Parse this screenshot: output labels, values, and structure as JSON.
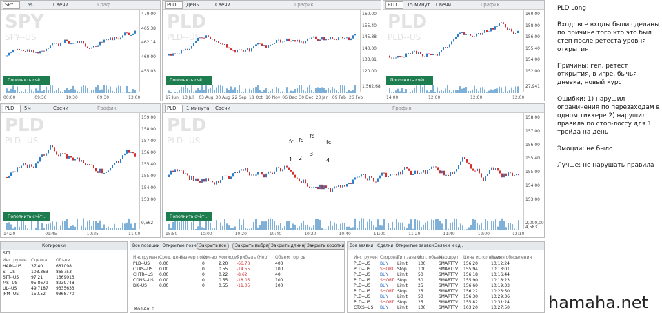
{
  "panes": [
    {
      "symbol": "SPY",
      "timeframe": "15s",
      "style": "Свечи",
      "title": "Граф",
      "watermark": "SPY",
      "watermark_sub": "SPY--US",
      "prices": [
        "470.00",
        "465.38",
        "462.14",
        "460.00",
        "455.03"
      ],
      "times": [
        "00:00",
        "09:30",
        "10:30",
        "09:30",
        "13:00"
      ],
      "button": "Пополнить счёт..."
    },
    {
      "symbol": "PLD",
      "timeframe": "День",
      "style": "Свечи",
      "title": "График",
      "watermark": "PLD",
      "watermark_sub": "PLD--US",
      "prices": [
        "160.00",
        "155.40",
        "145.88",
        "140.00",
        "133.81",
        "120.00"
      ],
      "volume": "1,562,689",
      "times": [
        "17 Jun",
        "13 Jul",
        "03 Aug",
        "30 Aug",
        "22 Sep",
        "18 Oct",
        "10 Nov",
        "06 Dec",
        "30 Dec",
        "23 Jan",
        "09 Feb",
        "26 Feb"
      ],
      "button": "Пополнить счёт..."
    },
    {
      "symbol": "PLD",
      "timeframe": "15 минут",
      "style": "Свечи",
      "title": "График",
      "watermark": "PLD",
      "watermark_sub": "PLD--US",
      "prices": [
        "160.00",
        "158.00",
        "156.00",
        "155.40",
        "154.00",
        "152.00"
      ],
      "volume": "27,941",
      "times": [
        "14:00",
        "12:00",
        "12:00",
        "12:00"
      ],
      "button": "Пополнить счёт..."
    },
    {
      "symbol": "PLD",
      "timeframe": "5м",
      "style": "Свечи",
      "title": "График",
      "watermark": "PLD",
      "watermark_sub": "PLD--US",
      "prices": [
        "159.00",
        "158.00",
        "157.00",
        "156.00",
        "155.40",
        "155.00",
        "154.00",
        "153.00"
      ],
      "volume": "9,662",
      "times": [
        "14:20",
        "09:45",
        "10:25",
        "11:00"
      ],
      "button": "Пополнить счёт..."
    },
    {
      "symbol": "PLD",
      "timeframe": "1 минута",
      "style": "Свечи",
      "title": "График",
      "watermark": "PLD",
      "watermark_sub": "PLD--US",
      "prices": [
        "158.00",
        "157.00",
        "156.00",
        "155.40",
        "155.00",
        "154.00",
        "153.00"
      ],
      "volume": "2,000,000",
      "volume2": "4,583",
      "times": [
        "15:50",
        "10:00",
        "10:20",
        "10:40",
        "10:20",
        "10:40",
        "11:00",
        "11:20",
        "11:40",
        "12:00",
        "12:10"
      ],
      "button": "Пополнить счёт...",
      "annotations": [
        "fc",
        "fc",
        "fc",
        "fc",
        "1",
        "2",
        "3",
        "4"
      ]
    }
  ],
  "watchlist": {
    "title": "Котировки",
    "symbol": "STT",
    "columns": [
      "Инструмент",
      "Сделка",
      "Объем"
    ],
    "rows": [
      [
        "HAIN--US",
        "37.40",
        "681098"
      ],
      [
        "SI--US",
        "108.363",
        "865753"
      ],
      [
        "STT--US",
        "97.21",
        "1369013"
      ],
      [
        "MS--US",
        "95.8679",
        "8939748"
      ],
      [
        "UL--US",
        "49.7187",
        "9335633"
      ],
      [
        "JPM--US",
        "150.52",
        "9368770"
      ]
    ]
  },
  "positions": {
    "tabs": [
      "Все позиции",
      "Открытые позиции"
    ],
    "buttons": [
      "Закрыть все",
      "Закрыть выбранное",
      "Закрыть длинные",
      "Закрыть короткие"
    ],
    "columns": [
      "Инструмент",
      "Сред. цена",
      "Размер пози",
      "Кол-во",
      "Комиссия",
      "Прибыль (Нер)",
      "Объем торгов"
    ],
    "rows": [
      [
        "PLD--US",
        "0.00",
        "",
        "0",
        "2.20",
        "-66.70",
        "400"
      ],
      [
        "CTXS--US",
        "0.00",
        "",
        "0",
        "0.55",
        "-14.55",
        "100"
      ],
      [
        "CHTR--US",
        "0.00",
        "",
        "0",
        "0.22",
        "-8.62",
        "40"
      ],
      [
        "CDNS--US",
        "0.00",
        "",
        "0",
        "0.55",
        "-18.05",
        "100"
      ],
      [
        "BK--US",
        "0.00",
        "",
        "0",
        "0.55",
        "-11.05",
        "100"
      ]
    ],
    "footer": "Кол-во: 0"
  },
  "orders": {
    "tabs": [
      "Все заявки",
      "Сделки",
      "Открытые заявки",
      "Заявки и сд.."
    ],
    "columns": [
      "Инструмент",
      "Сторона",
      "Тип заявки",
      "Исп. объем",
      "Маршрут",
      "Цена исполнения",
      "Время обновления"
    ],
    "rows": [
      [
        "PLD--US",
        "BUY",
        "Limit",
        "100",
        "SMARTTV",
        "156.20",
        "10:12:24"
      ],
      [
        "PLD--US",
        "SHORT",
        "Stop",
        "100",
        "SMARTTV",
        "155.94",
        "10:13:01"
      ],
      [
        "PLD--US",
        "BUY",
        "Limit",
        "50",
        "SMARTTV",
        "156.18",
        "10:16:44"
      ],
      [
        "PLD--US",
        "SHORT",
        "Stop",
        "50",
        "SMARTTV",
        "155.90",
        "10:18:23"
      ],
      [
        "PLD--US",
        "BUY",
        "Limit",
        "25",
        "SMARTTV",
        "156.60",
        "10:19:33"
      ],
      [
        "PLD--US",
        "SHORT",
        "Stop",
        "25",
        "SMARTTV",
        "156.22",
        "10:23:50"
      ],
      [
        "PLD--US",
        "BUY",
        "Limit",
        "50",
        "SMARTTV",
        "156.30",
        "10:29:36"
      ],
      [
        "PLD--US",
        "SHORT",
        "Stop",
        "25",
        "SMARTTV",
        "155.82",
        "10:31:24"
      ],
      [
        "CTXS--US",
        "BUY",
        "Limit",
        "100",
        "SMARTTV",
        "103.20",
        "10:27:50"
      ]
    ]
  },
  "notes": {
    "title": "PLD Long",
    "paragraphs": [
      "Вход: все входы были сделаны по причине того что это был степ после ретеста уровня открытия",
      "Причины: геп, ретест открытия, в игре, бычья дневка, новый курс",
      "Ошибки: 1) нарушил ограничения по перезаходам в одном тиккере 2) нарушил правила по стоп-лоссу для 1 трейда на день",
      "Эмоции: не было",
      "Лучше: не нарушать правила"
    ]
  },
  "watermark": "hamaha.net"
}
